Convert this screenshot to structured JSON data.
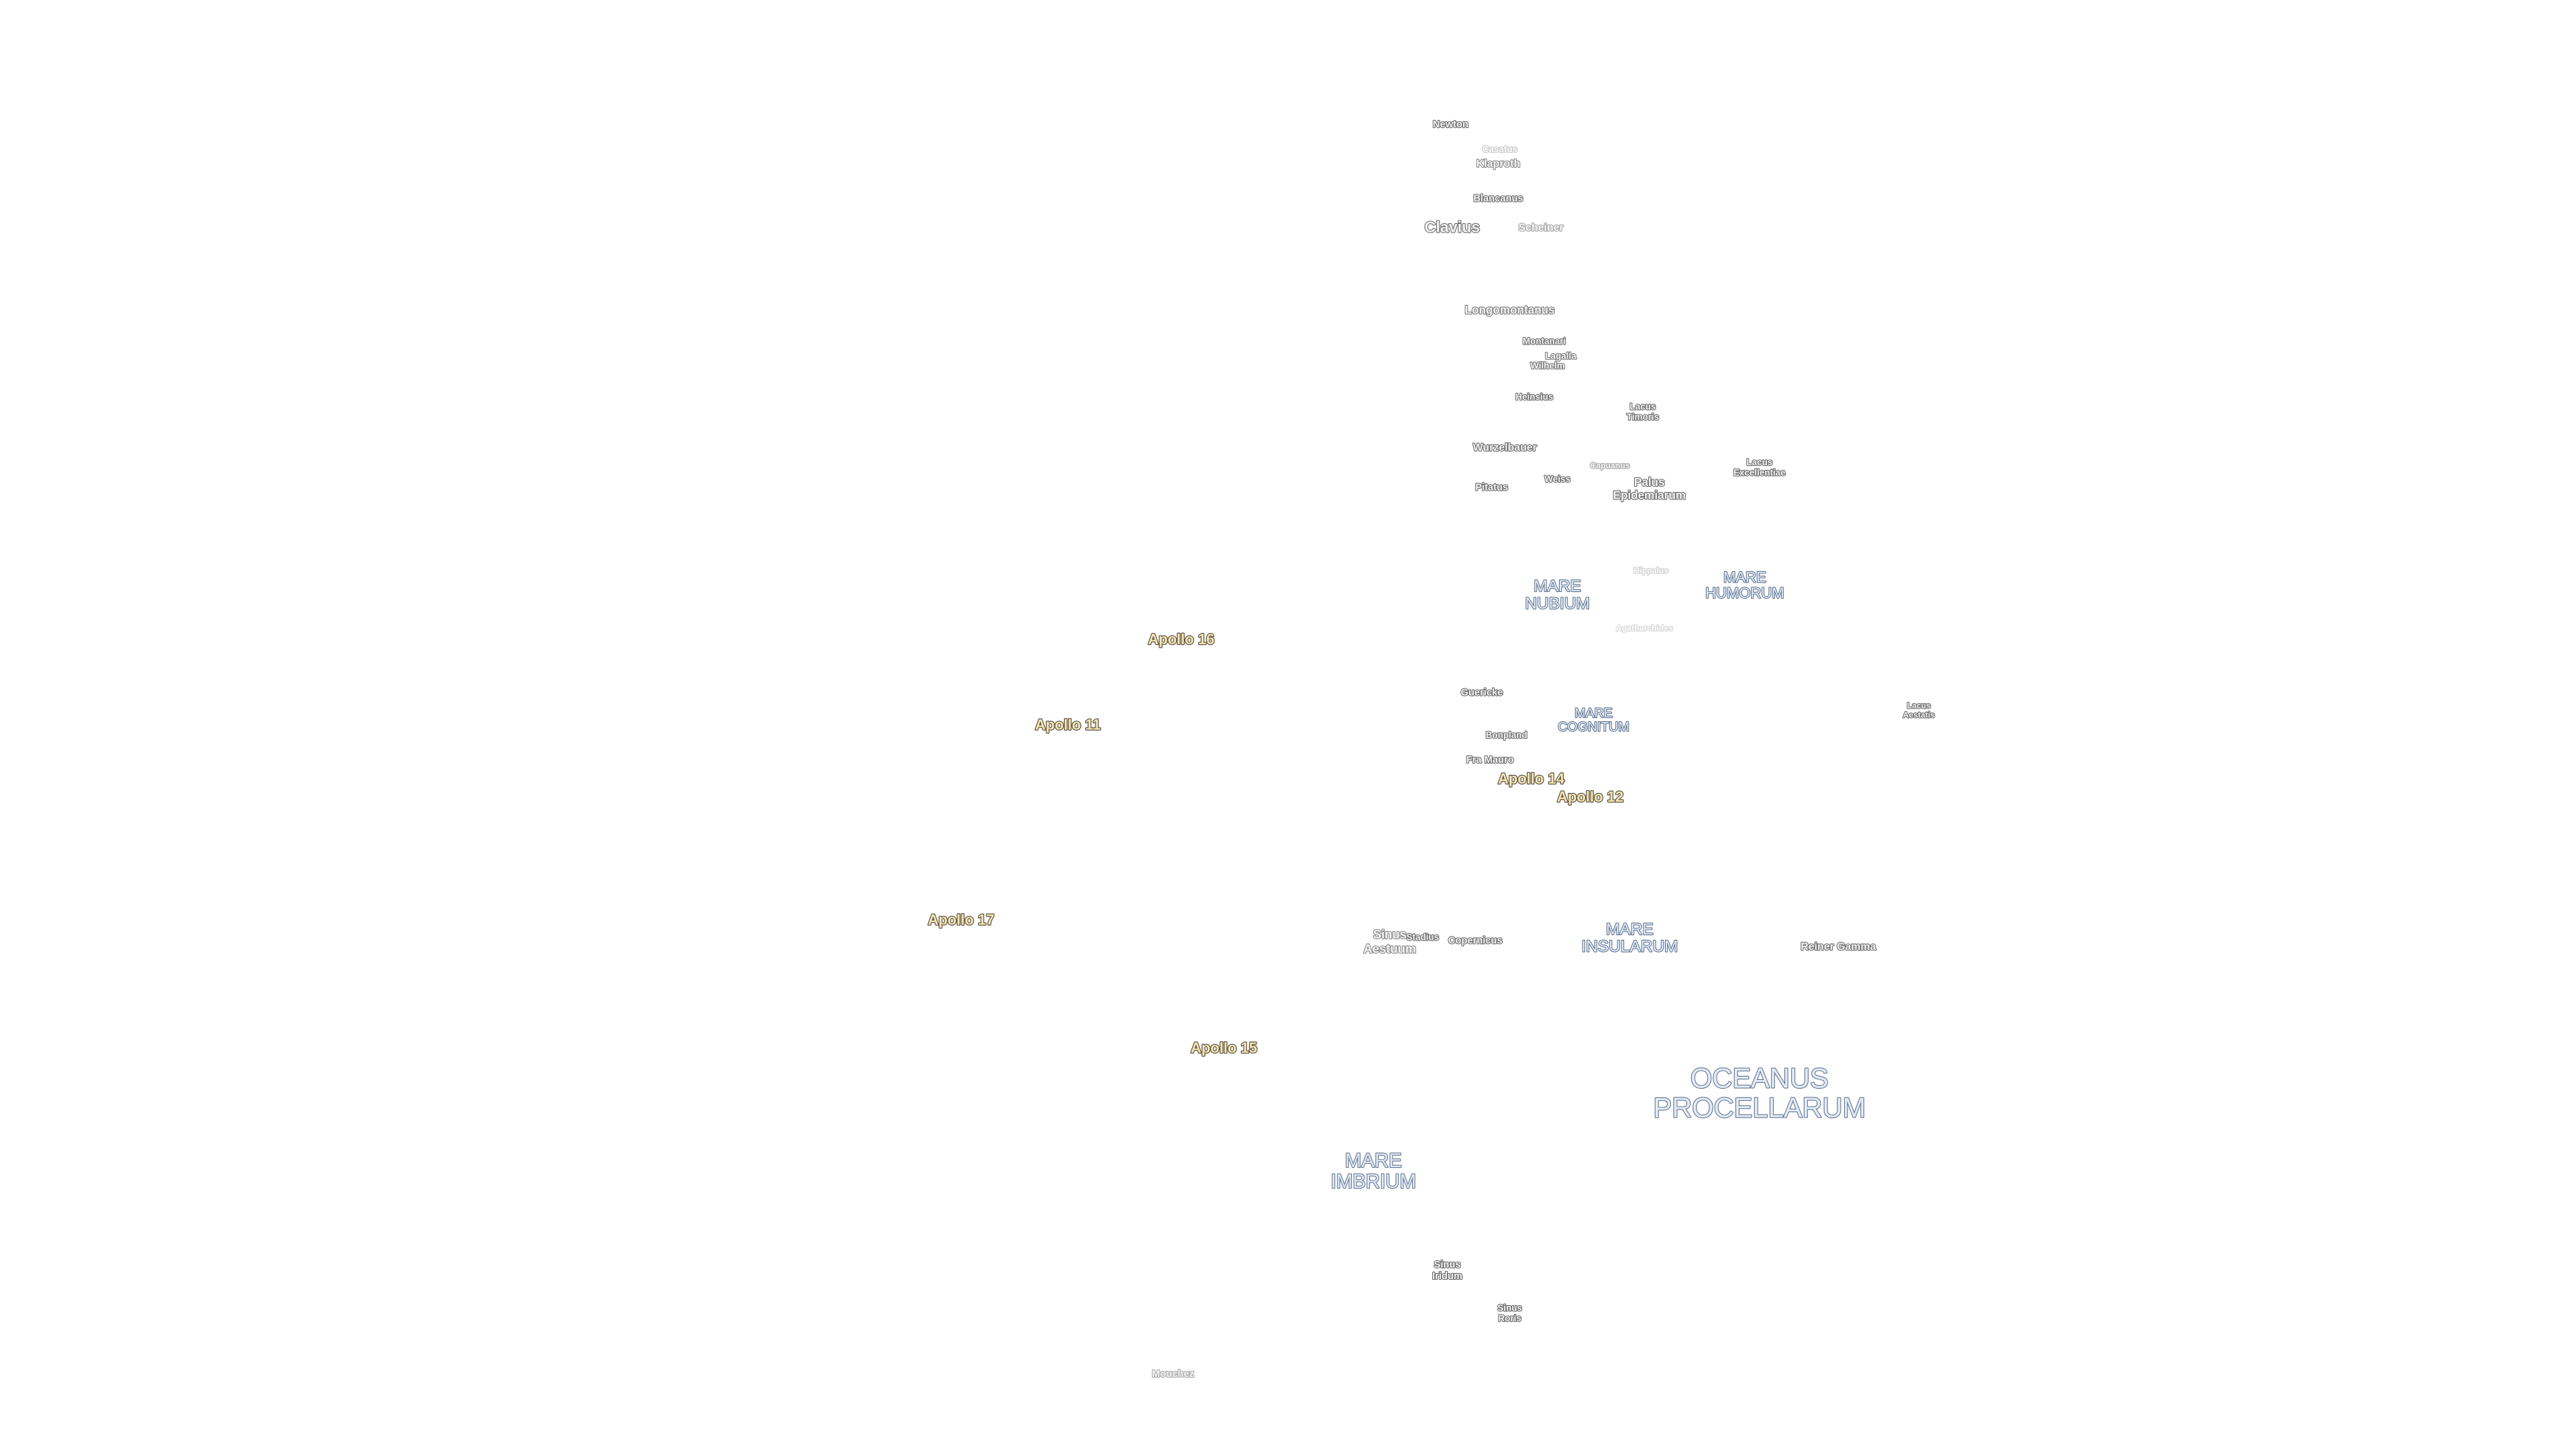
{
  "apollo_sites": [
    "Apollo 16",
    "Apollo 11",
    "Apollo 14",
    "Apollo 12",
    "Apollo 17",
    "Apollo 15"
  ],
  "maria": [
    [
      "MARE",
      "NUBIUM"
    ],
    [
      "MARE",
      "HUMORUM"
    ],
    [
      "MARE",
      "COGNITUM"
    ],
    [
      "MARE",
      "INSULARUM"
    ],
    [
      "OCEANUS",
      "PROCELLARUM"
    ],
    [
      "MARE",
      "IMBRIUM"
    ]
  ],
  "features": [
    [
      "Newton"
    ],
    [
      "Casatus"
    ],
    [
      "Klaproth"
    ],
    [
      "Blancanus"
    ],
    [
      "Clavius"
    ],
    [
      "Scheiner"
    ],
    [
      "Longomontanus"
    ],
    [
      "Montanari"
    ],
    [
      "Lagalla"
    ],
    [
      "Wilhelm"
    ],
    [
      "Heinsius"
    ],
    [
      "Lacus",
      "Timoris"
    ],
    [
      "Wurzelbauer"
    ],
    [
      "Capuanus"
    ],
    [
      "Lacus",
      "Excellentiae"
    ],
    [
      "Pitatus"
    ],
    [
      "Weiss"
    ],
    [
      "Palus",
      "Epidemiarum"
    ],
    [
      "Hippalus"
    ],
    [
      "Agatharchides"
    ],
    [
      "Lacus",
      "Aestatis"
    ],
    [
      "Guericke"
    ],
    [
      "Bonpland"
    ],
    [
      "Fra Mauro"
    ],
    [
      "Sinus",
      "Aestuum"
    ],
    [
      "Stadius"
    ],
    [
      "Copernicus"
    ],
    [
      "Reiner Gamma"
    ],
    [
      "Sinus",
      "Iridum"
    ],
    [
      "Sinus",
      "Roris"
    ],
    [
      "Mouchez"
    ]
  ]
}
